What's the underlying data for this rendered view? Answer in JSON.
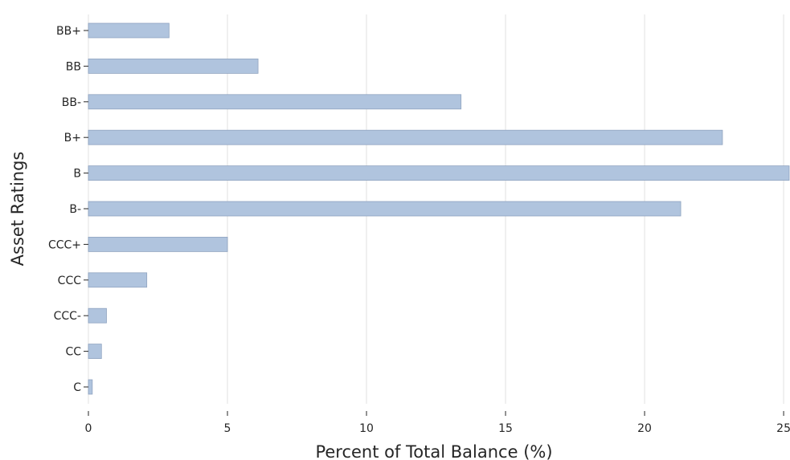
{
  "chart_data": {
    "type": "bar",
    "orientation": "horizontal",
    "title": "",
    "xlabel": "Percent of Total Balance (%)",
    "ylabel": "Asset Ratings",
    "categories": [
      "BB+",
      "BB",
      "BB-",
      "B+",
      "B",
      "B-",
      "CCC+",
      "CCC",
      "CCC-",
      "CC",
      "C"
    ],
    "values": [
      2.9,
      6.1,
      13.4,
      22.8,
      25.2,
      21.3,
      5.0,
      2.1,
      0.65,
      0.47,
      0.14
    ],
    "xlim": [
      0,
      25.2
    ],
    "xticks": [
      0,
      5,
      10,
      15,
      20,
      25
    ],
    "grid": "vertical",
    "colors": {
      "bar": "#b0c4de",
      "grid": "#ebebeb"
    }
  }
}
